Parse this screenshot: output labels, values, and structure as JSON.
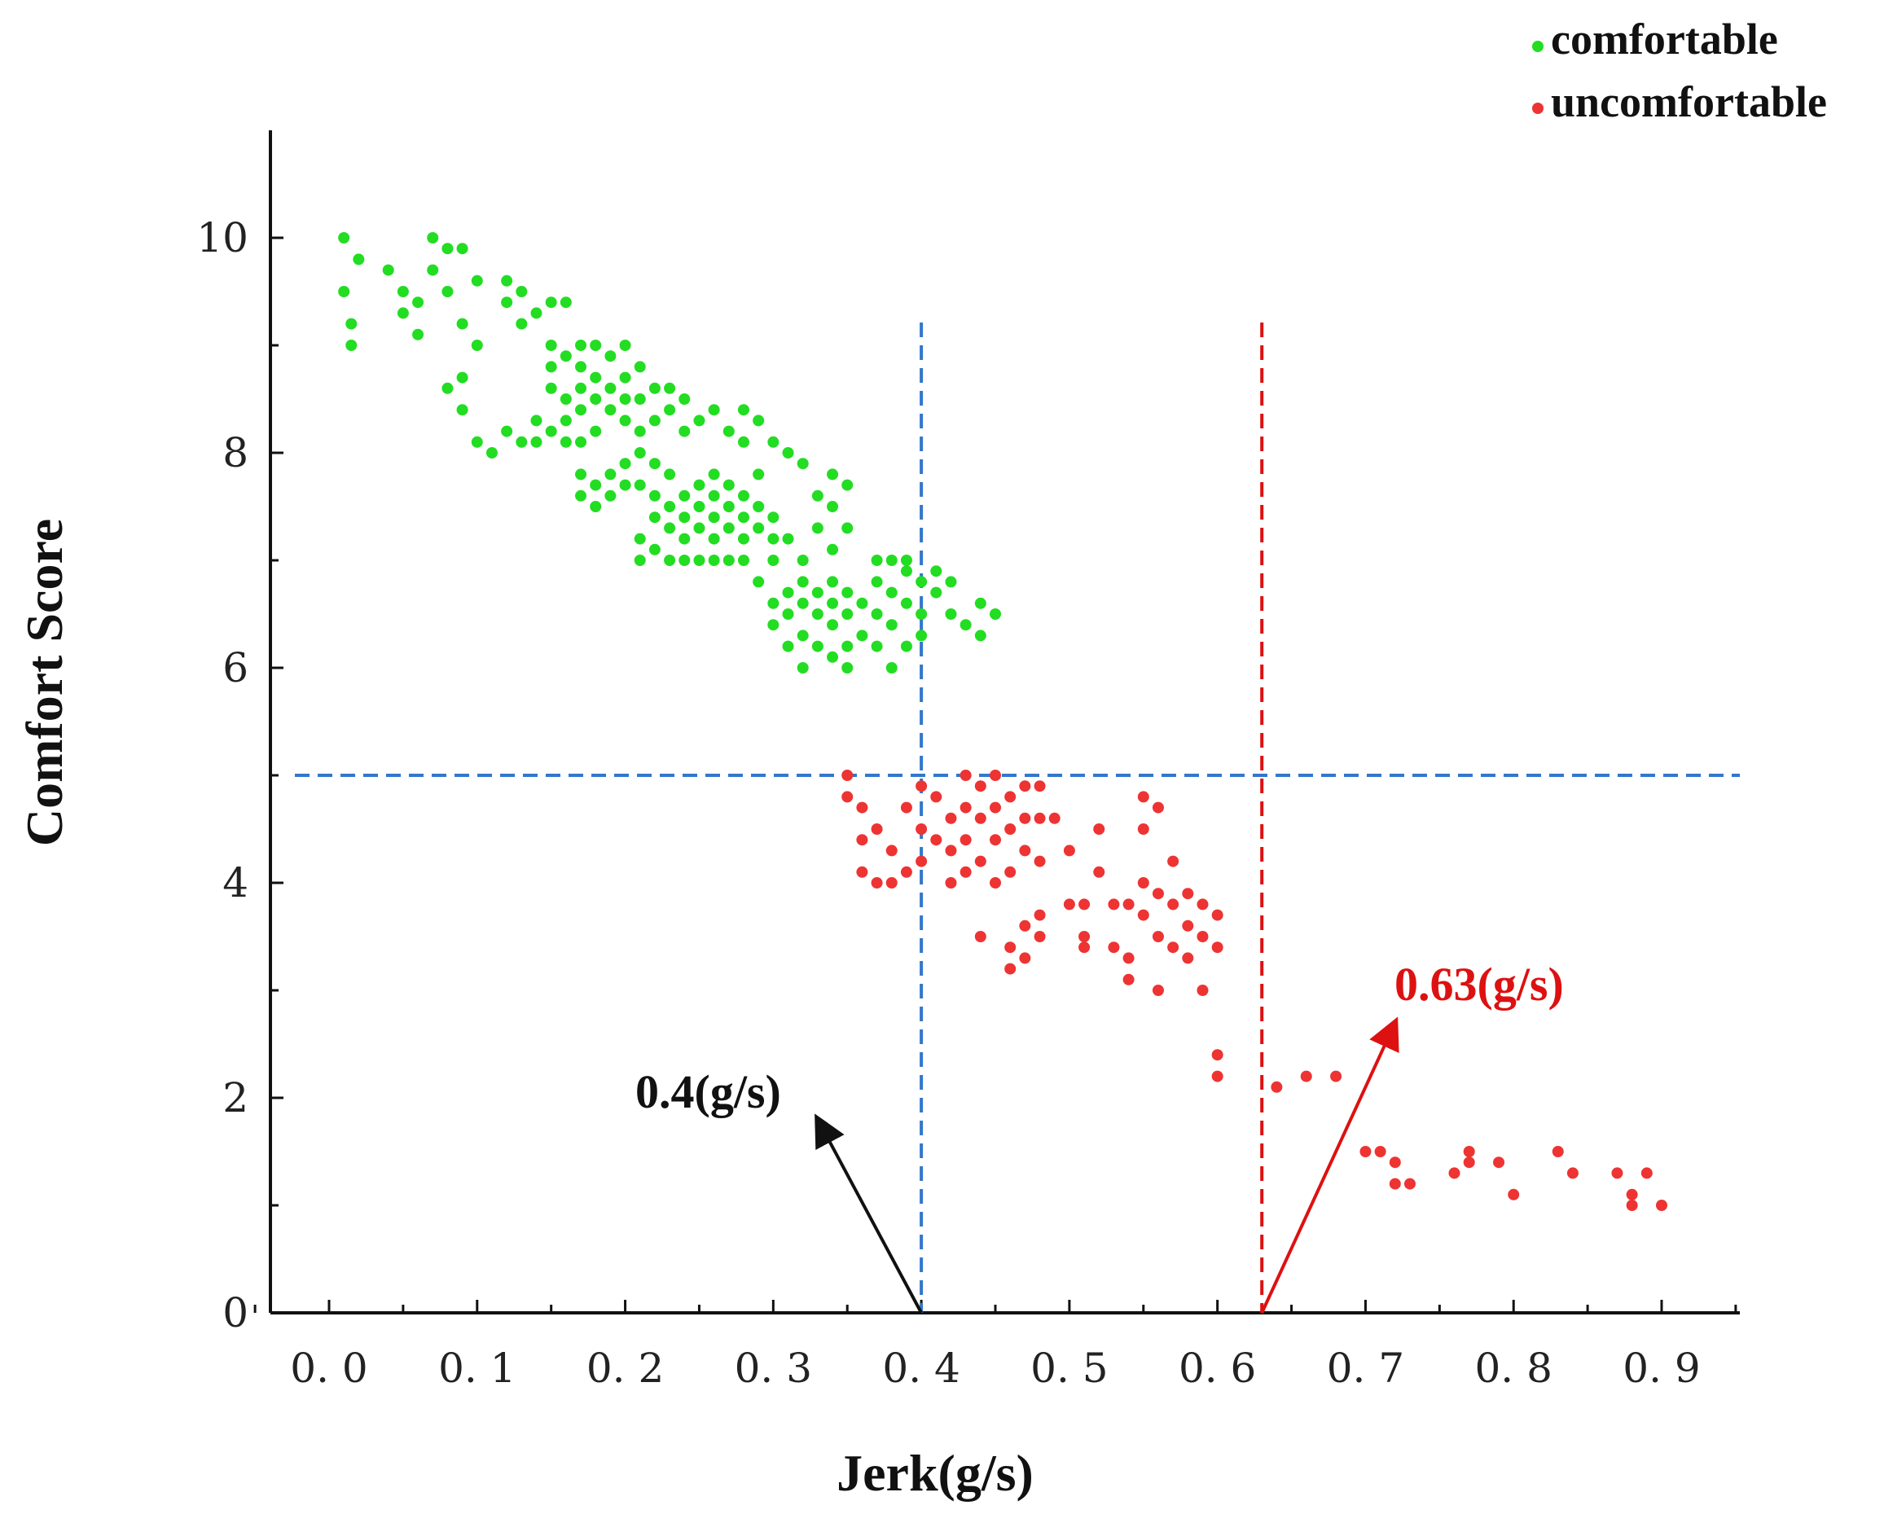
{
  "chart_data": {
    "type": "scatter",
    "title": "",
    "xlabel": "Jerk(g/s)",
    "ylabel": "Comfort Score",
    "xlim": [
      -0.05,
      0.95
    ],
    "ylim": [
      0,
      11
    ],
    "x_ticks": [
      0.0,
      0.1,
      0.2,
      0.3,
      0.4,
      0.5,
      0.6,
      0.7,
      0.8,
      0.9
    ],
    "x_tick_labels": [
      "0. 0",
      "0. 1",
      "0. 2",
      "0. 3",
      "0. 4",
      "0. 5",
      "0. 6",
      "0. 7",
      "0. 8",
      "0. 9"
    ],
    "y_ticks": [
      0,
      2,
      4,
      6,
      8,
      10
    ],
    "y_tick_labels": [
      "0",
      "2",
      "4",
      "6",
      "8",
      "10"
    ],
    "grid": false,
    "legend_position": "top-right",
    "series": [
      {
        "name": "comfortable",
        "color": "#22dd22",
        "points": [
          [
            0.01,
            10.0
          ],
          [
            0.01,
            9.5
          ],
          [
            0.015,
            9.0
          ],
          [
            0.015,
            9.2
          ],
          [
            0.02,
            9.8
          ],
          [
            0.04,
            9.7
          ],
          [
            0.05,
            9.5
          ],
          [
            0.05,
            9.3
          ],
          [
            0.06,
            9.4
          ],
          [
            0.06,
            9.1
          ],
          [
            0.07,
            9.7
          ],
          [
            0.07,
            10.0
          ],
          [
            0.08,
            9.9
          ],
          [
            0.08,
            9.5
          ],
          [
            0.09,
            9.9
          ],
          [
            0.09,
            9.2
          ],
          [
            0.1,
            9.6
          ],
          [
            0.1,
            9.0
          ],
          [
            0.08,
            8.6
          ],
          [
            0.09,
            8.7
          ],
          [
            0.09,
            8.4
          ],
          [
            0.1,
            8.1
          ],
          [
            0.11,
            8.0
          ],
          [
            0.12,
            8.2
          ],
          [
            0.13,
            8.1
          ],
          [
            0.12,
            9.6
          ],
          [
            0.12,
            9.4
          ],
          [
            0.13,
            9.5
          ],
          [
            0.13,
            9.2
          ],
          [
            0.14,
            9.3
          ],
          [
            0.15,
            9.4
          ],
          [
            0.16,
            9.4
          ],
          [
            0.15,
            9.0
          ],
          [
            0.15,
            8.8
          ],
          [
            0.15,
            8.6
          ],
          [
            0.16,
            8.9
          ],
          [
            0.16,
            8.5
          ],
          [
            0.16,
            8.3
          ],
          [
            0.17,
            9.0
          ],
          [
            0.17,
            8.8
          ],
          [
            0.17,
            8.6
          ],
          [
            0.17,
            8.4
          ],
          [
            0.17,
            8.1
          ],
          [
            0.18,
            9.0
          ],
          [
            0.18,
            8.7
          ],
          [
            0.18,
            8.5
          ],
          [
            0.18,
            8.2
          ],
          [
            0.19,
            8.9
          ],
          [
            0.19,
            8.6
          ],
          [
            0.19,
            8.4
          ],
          [
            0.2,
            9.0
          ],
          [
            0.2,
            8.7
          ],
          [
            0.2,
            8.5
          ],
          [
            0.2,
            8.3
          ],
          [
            0.21,
            8.8
          ],
          [
            0.21,
            8.5
          ],
          [
            0.21,
            8.2
          ],
          [
            0.14,
            8.3
          ],
          [
            0.14,
            8.1
          ],
          [
            0.15,
            8.2
          ],
          [
            0.16,
            8.1
          ],
          [
            0.22,
            8.6
          ],
          [
            0.22,
            8.3
          ],
          [
            0.23,
            8.6
          ],
          [
            0.23,
            8.4
          ],
          [
            0.24,
            8.5
          ],
          [
            0.24,
            8.2
          ],
          [
            0.25,
            8.3
          ],
          [
            0.26,
            8.4
          ],
          [
            0.27,
            8.2
          ],
          [
            0.28,
            8.4
          ],
          [
            0.28,
            8.1
          ],
          [
            0.29,
            8.3
          ],
          [
            0.3,
            8.1
          ],
          [
            0.31,
            8.0
          ],
          [
            0.32,
            7.9
          ],
          [
            0.17,
            7.8
          ],
          [
            0.17,
            7.6
          ],
          [
            0.18,
            7.7
          ],
          [
            0.18,
            7.5
          ],
          [
            0.19,
            7.8
          ],
          [
            0.19,
            7.6
          ],
          [
            0.2,
            7.7
          ],
          [
            0.2,
            7.9
          ],
          [
            0.21,
            8.0
          ],
          [
            0.21,
            7.7
          ],
          [
            0.22,
            7.9
          ],
          [
            0.22,
            7.6
          ],
          [
            0.22,
            7.4
          ],
          [
            0.23,
            7.8
          ],
          [
            0.23,
            7.5
          ],
          [
            0.23,
            7.3
          ],
          [
            0.24,
            7.6
          ],
          [
            0.24,
            7.4
          ],
          [
            0.24,
            7.2
          ],
          [
            0.25,
            7.7
          ],
          [
            0.25,
            7.5
          ],
          [
            0.25,
            7.3
          ],
          [
            0.25,
            7.0
          ],
          [
            0.26,
            7.8
          ],
          [
            0.26,
            7.6
          ],
          [
            0.26,
            7.4
          ],
          [
            0.26,
            7.2
          ],
          [
            0.27,
            7.7
          ],
          [
            0.27,
            7.5
          ],
          [
            0.27,
            7.3
          ],
          [
            0.27,
            7.0
          ],
          [
            0.28,
            7.6
          ],
          [
            0.28,
            7.4
          ],
          [
            0.28,
            7.2
          ],
          [
            0.29,
            7.8
          ],
          [
            0.29,
            7.5
          ],
          [
            0.29,
            7.3
          ],
          [
            0.3,
            7.4
          ],
          [
            0.3,
            7.2
          ],
          [
            0.21,
            7.2
          ],
          [
            0.21,
            7.0
          ],
          [
            0.22,
            7.1
          ],
          [
            0.23,
            7.0
          ],
          [
            0.24,
            7.0
          ],
          [
            0.26,
            7.0
          ],
          [
            0.28,
            7.0
          ],
          [
            0.3,
            7.0
          ],
          [
            0.31,
            7.2
          ],
          [
            0.32,
            7.0
          ],
          [
            0.33,
            7.6
          ],
          [
            0.33,
            7.3
          ],
          [
            0.34,
            7.8
          ],
          [
            0.34,
            7.5
          ],
          [
            0.35,
            7.7
          ],
          [
            0.35,
            7.3
          ],
          [
            0.34,
            7.1
          ],
          [
            0.29,
            6.8
          ],
          [
            0.3,
            6.6
          ],
          [
            0.3,
            6.4
          ],
          [
            0.31,
            6.7
          ],
          [
            0.31,
            6.5
          ],
          [
            0.31,
            6.2
          ],
          [
            0.32,
            6.8
          ],
          [
            0.32,
            6.6
          ],
          [
            0.32,
            6.3
          ],
          [
            0.32,
            6.0
          ],
          [
            0.33,
            6.7
          ],
          [
            0.33,
            6.5
          ],
          [
            0.33,
            6.2
          ],
          [
            0.34,
            6.8
          ],
          [
            0.34,
            6.6
          ],
          [
            0.34,
            6.4
          ],
          [
            0.34,
            6.1
          ],
          [
            0.35,
            6.7
          ],
          [
            0.35,
            6.5
          ],
          [
            0.35,
            6.2
          ],
          [
            0.35,
            6.0
          ],
          [
            0.36,
            6.6
          ],
          [
            0.36,
            6.3
          ],
          [
            0.37,
            6.8
          ],
          [
            0.37,
            6.5
          ],
          [
            0.37,
            6.2
          ],
          [
            0.38,
            6.7
          ],
          [
            0.38,
            6.4
          ],
          [
            0.38,
            6.0
          ],
          [
            0.39,
            6.9
          ],
          [
            0.39,
            6.6
          ],
          [
            0.39,
            6.2
          ],
          [
            0.4,
            6.8
          ],
          [
            0.4,
            6.5
          ],
          [
            0.4,
            6.3
          ],
          [
            0.41,
            6.7
          ],
          [
            0.41,
            6.9
          ],
          [
            0.42,
            6.8
          ],
          [
            0.42,
            6.5
          ],
          [
            0.43,
            6.4
          ],
          [
            0.44,
            6.3
          ],
          [
            0.44,
            6.6
          ],
          [
            0.45,
            6.5
          ],
          [
            0.37,
            7.0
          ],
          [
            0.38,
            7.0
          ],
          [
            0.39,
            7.0
          ]
        ]
      },
      {
        "name": "uncomfortable",
        "color": "#ee3333",
        "points": [
          [
            0.35,
            5.0
          ],
          [
            0.35,
            4.8
          ],
          [
            0.36,
            4.7
          ],
          [
            0.36,
            4.4
          ],
          [
            0.36,
            4.1
          ],
          [
            0.37,
            4.5
          ],
          [
            0.37,
            4.0
          ],
          [
            0.38,
            4.0
          ],
          [
            0.38,
            4.3
          ],
          [
            0.39,
            4.1
          ],
          [
            0.39,
            4.7
          ],
          [
            0.4,
            4.9
          ],
          [
            0.4,
            4.5
          ],
          [
            0.4,
            4.2
          ],
          [
            0.41,
            4.4
          ],
          [
            0.41,
            4.8
          ],
          [
            0.42,
            4.6
          ],
          [
            0.42,
            4.3
          ],
          [
            0.42,
            4.0
          ],
          [
            0.43,
            5.0
          ],
          [
            0.43,
            4.7
          ],
          [
            0.43,
            4.4
          ],
          [
            0.43,
            4.1
          ],
          [
            0.44,
            4.9
          ],
          [
            0.44,
            4.6
          ],
          [
            0.44,
            4.2
          ],
          [
            0.45,
            5.0
          ],
          [
            0.45,
            4.7
          ],
          [
            0.45,
            4.4
          ],
          [
            0.45,
            4.0
          ],
          [
            0.46,
            4.8
          ],
          [
            0.46,
            4.5
          ],
          [
            0.46,
            4.1
          ],
          [
            0.47,
            4.9
          ],
          [
            0.47,
            4.6
          ],
          [
            0.47,
            4.3
          ],
          [
            0.48,
            4.9
          ],
          [
            0.48,
            4.6
          ],
          [
            0.48,
            4.2
          ],
          [
            0.44,
            3.5
          ],
          [
            0.46,
            3.4
          ],
          [
            0.46,
            3.2
          ],
          [
            0.47,
            3.6
          ],
          [
            0.47,
            3.3
          ],
          [
            0.48,
            3.7
          ],
          [
            0.48,
            3.5
          ],
          [
            0.49,
            4.6
          ],
          [
            0.5,
            4.3
          ],
          [
            0.5,
            3.8
          ],
          [
            0.51,
            3.8
          ],
          [
            0.51,
            3.5
          ],
          [
            0.51,
            3.4
          ],
          [
            0.52,
            4.5
          ],
          [
            0.52,
            4.1
          ],
          [
            0.53,
            3.8
          ],
          [
            0.53,
            3.4
          ],
          [
            0.54,
            3.8
          ],
          [
            0.54,
            3.3
          ],
          [
            0.54,
            3.1
          ],
          [
            0.55,
            4.8
          ],
          [
            0.55,
            4.5
          ],
          [
            0.55,
            4.0
          ],
          [
            0.55,
            3.7
          ],
          [
            0.56,
            4.7
          ],
          [
            0.56,
            3.9
          ],
          [
            0.56,
            3.5
          ],
          [
            0.56,
            3.0
          ],
          [
            0.57,
            4.2
          ],
          [
            0.57,
            3.8
          ],
          [
            0.57,
            3.4
          ],
          [
            0.58,
            3.9
          ],
          [
            0.58,
            3.6
          ],
          [
            0.58,
            3.3
          ],
          [
            0.59,
            3.8
          ],
          [
            0.59,
            3.5
          ],
          [
            0.59,
            3.0
          ],
          [
            0.6,
            3.7
          ],
          [
            0.6,
            3.4
          ],
          [
            0.6,
            2.4
          ],
          [
            0.6,
            2.2
          ],
          [
            0.64,
            2.1
          ],
          [
            0.66,
            2.2
          ],
          [
            0.68,
            2.2
          ],
          [
            0.7,
            1.5
          ],
          [
            0.71,
            1.5
          ],
          [
            0.72,
            1.4
          ],
          [
            0.72,
            1.2
          ],
          [
            0.73,
            1.2
          ],
          [
            0.76,
            1.3
          ],
          [
            0.77,
            1.5
          ],
          [
            0.77,
            1.4
          ],
          [
            0.79,
            1.4
          ],
          [
            0.8,
            1.1
          ],
          [
            0.83,
            1.5
          ],
          [
            0.84,
            1.3
          ],
          [
            0.87,
            1.3
          ],
          [
            0.88,
            1.1
          ],
          [
            0.88,
            1.0
          ],
          [
            0.89,
            1.3
          ],
          [
            0.9,
            1.0
          ]
        ]
      }
    ],
    "reference_lines": [
      {
        "orientation": "vertical",
        "value": 0.4,
        "color": "#3377cc",
        "style": "dashed"
      },
      {
        "orientation": "vertical",
        "value": 0.63,
        "color": "#dd1111",
        "style": "dashed"
      },
      {
        "orientation": "horizontal",
        "value": 5,
        "color": "#3377cc",
        "style": "dashed"
      }
    ],
    "annotations": [
      {
        "text": "0.4(g/s)",
        "color": "#111111",
        "arrow_from": [
          0.4,
          0
        ],
        "arrow_to": [
          0.33,
          1.8
        ]
      },
      {
        "text": "0.63(g/s)",
        "color": "#dd1111",
        "arrow_from": [
          0.63,
          0
        ],
        "arrow_to": [
          0.72,
          2.7
        ]
      }
    ]
  }
}
